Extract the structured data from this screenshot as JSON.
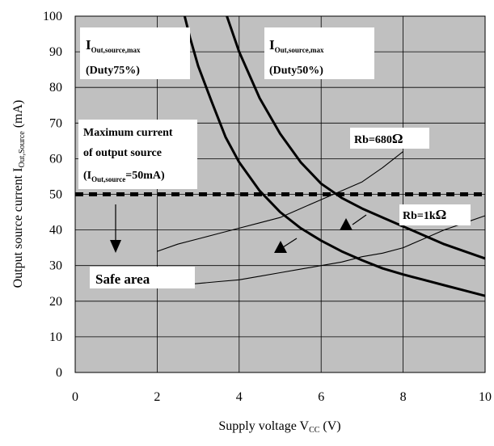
{
  "chart_data": {
    "type": "line",
    "xlabel": "Supply voltage V",
    "xlabel_sub": "CC",
    "xlabel_unit": " (V)",
    "ylabel": "Output source current I",
    "ylabel_sub": "Out,Source",
    "ylabel_unit": " (mA)",
    "xlim": [
      0,
      10
    ],
    "ylim": [
      0,
      100
    ],
    "x_ticks": [
      "0",
      "2",
      "4",
      "6",
      "8",
      "10"
    ],
    "y_ticks": [
      "0",
      "10",
      "20",
      "30",
      "40",
      "50",
      "60",
      "70",
      "80",
      "90",
      "100"
    ],
    "grid": true,
    "background_color": "#c0c0c0",
    "series": [
      {
        "name": "I Out,source,max (Duty75%)",
        "style": "thick",
        "x": [
          2.67,
          2.8,
          3.0,
          3.33,
          3.67,
          4.0,
          4.5,
          5.0,
          5.5,
          6.0,
          6.5,
          7.0,
          7.5,
          8.0,
          8.5,
          9.0,
          9.5,
          10.0
        ],
        "y": [
          100,
          94,
          86,
          76,
          66,
          59,
          51,
          45,
          40.5,
          37,
          34,
          31.5,
          29.2,
          27.5,
          26,
          24.5,
          23,
          21.5
        ]
      },
      {
        "name": "I Out,source,max (Duty50%)",
        "style": "thick",
        "x": [
          3.7,
          4.0,
          4.5,
          5.0,
          5.5,
          6.0,
          6.5,
          7.0,
          7.5,
          8.0,
          8.5,
          9.0,
          9.5,
          10.0
        ],
        "y": [
          100,
          90,
          77,
          67,
          59,
          53,
          49,
          46,
          43.5,
          41,
          38.5,
          36,
          34,
          32
        ]
      },
      {
        "name": "Rb=680Ω",
        "style": "thin",
        "x": [
          2.0,
          2.5,
          3.0,
          3.5,
          4.0,
          4.5,
          5.0,
          5.5,
          6.0,
          6.5,
          7.0,
          7.5,
          8.0
        ],
        "y": [
          34,
          36,
          37.5,
          39,
          40.5,
          42,
          43.5,
          46,
          48.5,
          51,
          53.5,
          57.5,
          62
        ]
      },
      {
        "name": "Rb=1kΩ",
        "style": "thin",
        "x": [
          2.0,
          2.5,
          3.0,
          3.5,
          4.0,
          4.5,
          5.0,
          5.5,
          6.0,
          6.5,
          7.0,
          7.5,
          8.0,
          8.5,
          9.0,
          9.5,
          10.0
        ],
        "y": [
          24,
          24.5,
          25,
          25.5,
          26,
          27,
          28,
          29,
          30,
          31,
          32.5,
          33.5,
          35,
          37.5,
          40,
          42,
          44
        ]
      }
    ],
    "reference_line": {
      "y": 50,
      "style": "dashed-thick"
    },
    "annotations": {
      "duty75_main": "I",
      "duty75_sub": "Out,source,max",
      "duty75_paren": "(Duty75%)",
      "duty50_main": "I",
      "duty50_sub": "Out,source,max",
      "duty50_paren": "(Duty50%)",
      "rb680": "Rb=680",
      "rb680_omega": "Ω",
      "rb1k": "Rb=1k",
      "rb1k_omega": "Ω",
      "max_line1": "Maximum current",
      "max_line2": "of output source",
      "max_line3_pre": "(I",
      "max_line3_sub": "Out,source",
      "max_line3_post": "=50mA)",
      "safe_area": "Safe area"
    }
  }
}
